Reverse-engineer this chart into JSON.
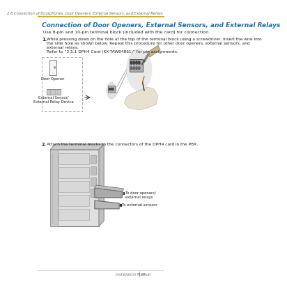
{
  "page_header": "2.8 Connection of Doorphones, Door Openers, External Sensors, and External Relays",
  "header_line_color": "#C8A000",
  "title": "Connection of Door Openers, External Sensors, and External Relays",
  "title_color": "#1a6fad",
  "subtitle": "Use 8-pin and 10-pin terminal block (included with the card) for connection.",
  "step1_num": "1.",
  "step1_text1": "While pressing down on the hole at the top of the terminal block using a screwdriver, insert the wire into",
  "step1_text2": "the side hole as shown below. Repeat this procedure for other door openers, external sensors, and",
  "step1_text3": "external relays.",
  "step1_text4": "Refer to “2.5.1 DPH4 Card (KX-TAW84861)” for pin assignments.",
  "step2_num": "2.",
  "step2_text": "Attach the terminal blocks to the connectors of the DPH4 card in the PBX.",
  "label1": "Door Opener",
  "label2": "External Sensor/\nExternal Relay Device",
  "arrow_label1": "To door openers/\nexternal relays",
  "arrow_label2": "To external sensors",
  "footer_text": "Installation Manual",
  "footer_page": "97",
  "bg_color": "#ffffff",
  "text_color": "#222222",
  "gray_color": "#888888",
  "light_gray": "#cccccc",
  "box_color": "#e8e8e8"
}
